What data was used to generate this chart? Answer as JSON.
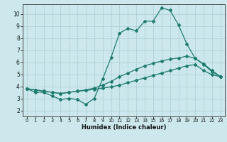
{
  "xlabel": "Humidex (Indice chaleur)",
  "bg_color": "#cce8ec",
  "grid_color": "#aacdd4",
  "line_color": "#1e7b70",
  "xlim": [
    -0.5,
    23.5
  ],
  "ylim": [
    1.5,
    10.8
  ],
  "yticks": [
    2,
    3,
    4,
    5,
    6,
    7,
    8,
    9,
    10
  ],
  "xticks": [
    0,
    1,
    2,
    3,
    4,
    5,
    6,
    7,
    8,
    9,
    10,
    11,
    12,
    13,
    14,
    15,
    16,
    17,
    18,
    19,
    20,
    21,
    22,
    23
  ],
  "series1_x": [
    0,
    1,
    2,
    3,
    4,
    5,
    6,
    7,
    8,
    9,
    10,
    11,
    12,
    13,
    14,
    15,
    16,
    17,
    18,
    19,
    20,
    21,
    22,
    23
  ],
  "series1_y": [
    3.8,
    3.5,
    3.5,
    3.2,
    2.9,
    3.0,
    2.9,
    2.5,
    3.0,
    4.6,
    6.4,
    8.4,
    8.8,
    8.6,
    9.4,
    9.4,
    10.5,
    10.3,
    9.1,
    7.5,
    6.3,
    5.8,
    5.2,
    4.8
  ],
  "series2_x": [
    0,
    1,
    2,
    3,
    4,
    5,
    6,
    7,
    8,
    9,
    10,
    11,
    12,
    13,
    14,
    15,
    16,
    17,
    18,
    19,
    20,
    21,
    22,
    23
  ],
  "series2_y": [
    3.8,
    3.7,
    3.6,
    3.5,
    3.4,
    3.5,
    3.6,
    3.7,
    3.85,
    4.1,
    4.4,
    4.8,
    5.1,
    5.4,
    5.7,
    5.9,
    6.1,
    6.25,
    6.35,
    6.5,
    6.3,
    5.85,
    5.3,
    4.8
  ],
  "series3_x": [
    0,
    1,
    2,
    3,
    4,
    5,
    6,
    7,
    8,
    9,
    10,
    11,
    12,
    13,
    14,
    15,
    16,
    17,
    18,
    19,
    20,
    21,
    22,
    23
  ],
  "series3_y": [
    3.8,
    3.7,
    3.6,
    3.5,
    3.4,
    3.5,
    3.6,
    3.65,
    3.75,
    3.85,
    3.95,
    4.1,
    4.3,
    4.5,
    4.7,
    4.9,
    5.1,
    5.3,
    5.5,
    5.7,
    5.8,
    5.3,
    4.95,
    4.8
  ],
  "xlabel_fontsize": 6.0,
  "tick_fontsize_x": 4.8,
  "tick_fontsize_y": 5.5,
  "marker_size": 2.0,
  "linewidth": 0.9
}
